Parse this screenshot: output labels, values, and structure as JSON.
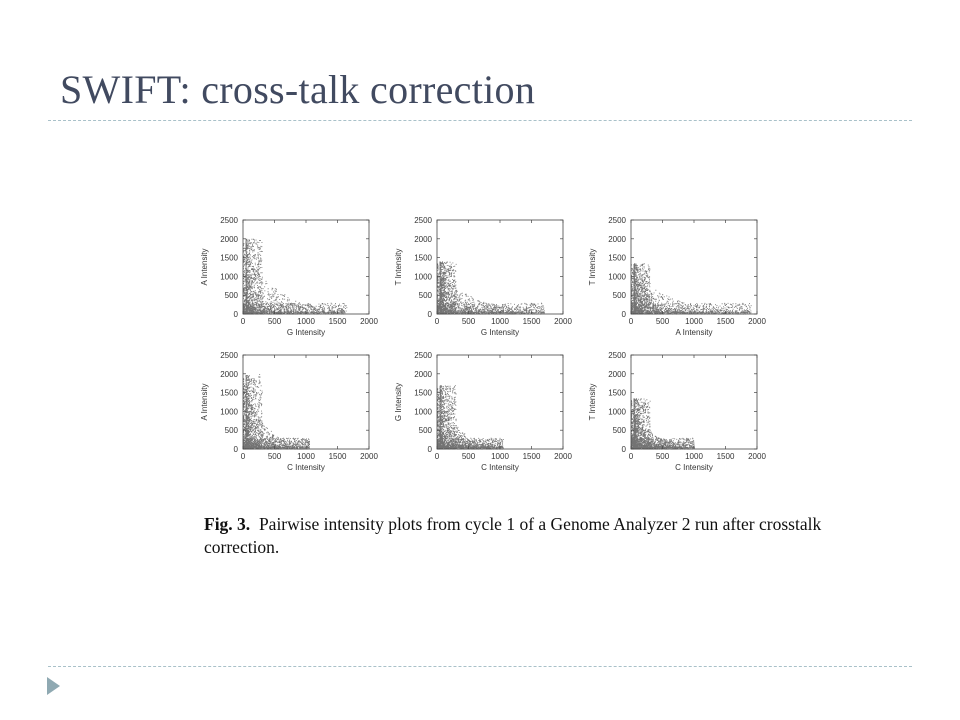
{
  "slide": {
    "title": "SWIFT: cross-talk correction"
  },
  "caption": {
    "lead": "Fig. 3.",
    "text": "Pairwise intensity plots from cycle 1 of a Genome Analyzer 2 run after crosstalk correction."
  },
  "colors": {
    "title": "#414a60",
    "rule": "#a9c1c9",
    "nav_arrow": "#8fa9b2"
  },
  "icons": {
    "nav": "triangle-right-icon"
  },
  "chart_data": [
    {
      "type": "scatter",
      "title": "",
      "xlabel": "G Intensity",
      "ylabel": "A Intensity",
      "xlim": [
        0,
        2000
      ],
      "ylim": [
        0,
        2500
      ],
      "xticks": [
        0,
        500,
        1000,
        1500,
        2000
      ],
      "yticks": [
        0,
        500,
        1000,
        1500,
        2000,
        2500
      ],
      "shape": {
        "x_max": 1650,
        "y_max": 2000
      }
    },
    {
      "type": "scatter",
      "title": "",
      "xlabel": "G Intensity",
      "ylabel": "T Intensity",
      "xlim": [
        0,
        2000
      ],
      "ylim": [
        0,
        2500
      ],
      "xticks": [
        0,
        500,
        1000,
        1500,
        2000
      ],
      "yticks": [
        0,
        500,
        1000,
        1500,
        2000,
        2500
      ],
      "shape": {
        "x_max": 1700,
        "y_max": 1400
      }
    },
    {
      "type": "scatter",
      "title": "",
      "xlabel": "A Intensity",
      "ylabel": "T Intensity",
      "xlim": [
        0,
        2000
      ],
      "ylim": [
        0,
        2500
      ],
      "xticks": [
        0,
        500,
        1000,
        1500,
        2000
      ],
      "yticks": [
        0,
        500,
        1000,
        1500,
        2000,
        2500
      ],
      "shape": {
        "x_max": 1900,
        "y_max": 1350
      }
    },
    {
      "type": "scatter",
      "title": "",
      "xlabel": "C Intensity",
      "ylabel": "A Intensity",
      "xlim": [
        0,
        2000
      ],
      "ylim": [
        0,
        2500
      ],
      "xticks": [
        0,
        500,
        1000,
        1500,
        2000
      ],
      "yticks": [
        0,
        500,
        1000,
        1500,
        2000,
        2500
      ],
      "shape": {
        "x_max": 1050,
        "y_max": 2000
      }
    },
    {
      "type": "scatter",
      "title": "",
      "xlabel": "C Intensity",
      "ylabel": "G Intensity",
      "xlim": [
        0,
        2000
      ],
      "ylim": [
        0,
        2500
      ],
      "xticks": [
        0,
        500,
        1000,
        1500,
        2000
      ],
      "yticks": [
        0,
        500,
        1000,
        1500,
        2000,
        2500
      ],
      "shape": {
        "x_max": 1050,
        "y_max": 1700
      }
    },
    {
      "type": "scatter",
      "title": "",
      "xlabel": "C Intensity",
      "ylabel": "T Intensity",
      "xlim": [
        0,
        2000
      ],
      "ylim": [
        0,
        2500
      ],
      "xticks": [
        0,
        500,
        1000,
        1500,
        2000
      ],
      "yticks": [
        0,
        500,
        1000,
        1500,
        2000,
        2500
      ],
      "shape": {
        "x_max": 1000,
        "y_max": 1350
      }
    }
  ]
}
